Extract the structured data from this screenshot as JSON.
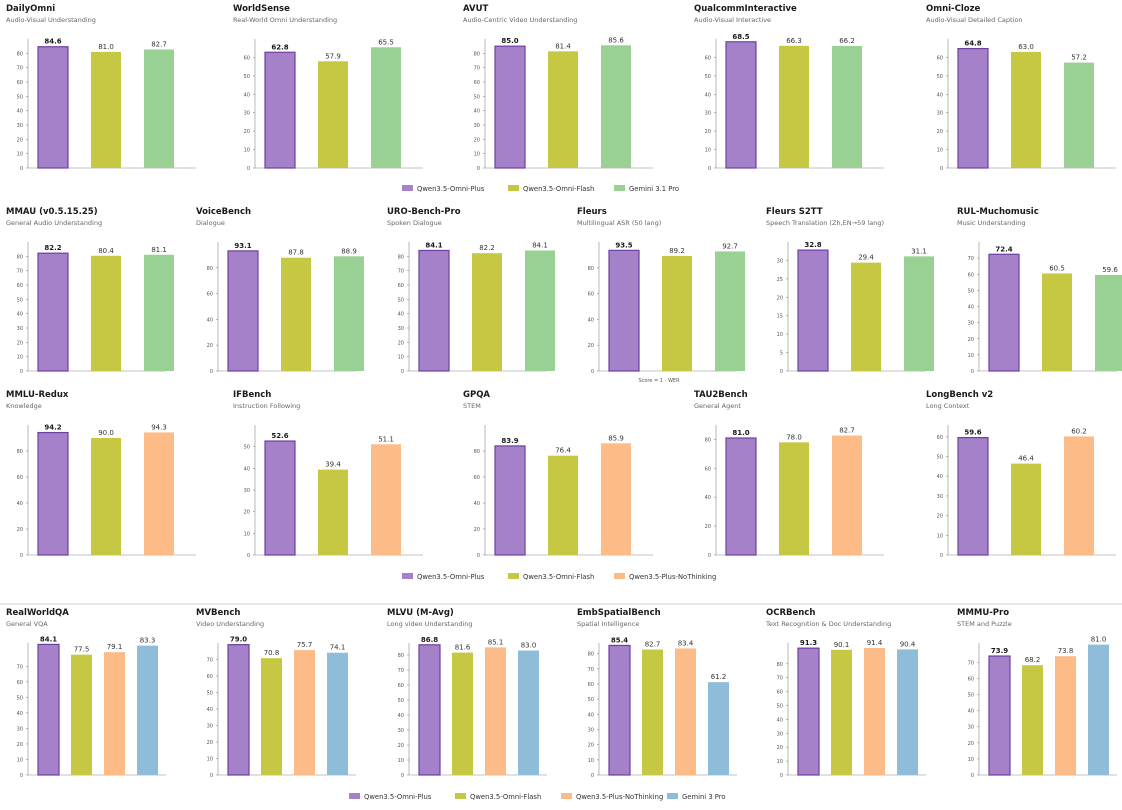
{
  "colors": {
    "Qwen3.5-Omni-Plus": "#a481c9",
    "Qwen3.5-Omni-Plus-edge": "#6e3fa0",
    "Qwen3.5-Omni-Flash": "#c6c843",
    "Gemini 3.1 Pro": "#98d193",
    "Qwen3.5-Plus-NoThinking": "#fdbb87",
    "Gemini 3 Pro": "#8fbcd9"
  },
  "legends": [
    {
      "items": [
        "Qwen3.5-Omni-Plus",
        "Qwen3.5-Omni-Flash",
        "Gemini 3.1 Pro"
      ]
    },
    {
      "items": [
        "Qwen3.5-Omni-Plus",
        "Qwen3.5-Omni-Flash",
        "Qwen3.5-Plus-NoThinking"
      ]
    },
    {
      "items": [
        "Qwen3.5-Omni-Plus",
        "Qwen3.5-Omni-Flash",
        "Qwen3.5-Plus-NoThinking",
        "Gemini 3 Pro"
      ]
    }
  ],
  "chart_data": [
    {
      "type": "bar",
      "title": "DailyOmni",
      "subtitle": "Audio-Visual Understanding",
      "series_names": [
        "Qwen3.5-Omni-Plus",
        "Qwen3.5-Omni-Flash",
        "Gemini 3.1 Pro"
      ],
      "values": [
        84.6,
        81.0,
        82.7
      ],
      "labels": [
        "84.6",
        "81.0",
        "82.7"
      ],
      "yticks": [
        0,
        10,
        20,
        30,
        40,
        50,
        60,
        70,
        80
      ],
      "ylim": [
        0,
        90
      ]
    },
    {
      "type": "bar",
      "title": "WorldSense",
      "subtitle": "Real-World Omni Understanding",
      "series_names": [
        "Qwen3.5-Omni-Plus",
        "Qwen3.5-Omni-Flash",
        "Gemini 3.1 Pro"
      ],
      "values": [
        62.8,
        57.9,
        65.5
      ],
      "labels": [
        "62.8",
        "57.9",
        "65.5"
      ],
      "yticks": [
        0,
        10,
        20,
        30,
        40,
        50,
        60
      ],
      "ylim": [
        0,
        70
      ]
    },
    {
      "type": "bar",
      "title": "AVUT",
      "subtitle": "Audio-Centric Video Understanding",
      "series_names": [
        "Qwen3.5-Omni-Plus",
        "Qwen3.5-Omni-Flash",
        "Gemini 3.1 Pro"
      ],
      "values": [
        85.0,
        81.4,
        85.6
      ],
      "labels": [
        "85.0",
        "81.4",
        "85.6"
      ],
      "yticks": [
        0,
        10,
        20,
        30,
        40,
        50,
        60,
        70,
        80
      ],
      "ylim": [
        0,
        90
      ]
    },
    {
      "type": "bar",
      "title": "QualcommInteractive",
      "subtitle": "Audio-Visual Interactive",
      "series_names": [
        "Qwen3.5-Omni-Plus",
        "Qwen3.5-Omni-Flash",
        "Gemini 3.1 Pro"
      ],
      "values": [
        68.5,
        66.3,
        66.2
      ],
      "labels": [
        "68.5",
        "66.3",
        "66.2"
      ],
      "yticks": [
        0,
        10,
        20,
        30,
        40,
        50,
        60
      ],
      "ylim": [
        0,
        70
      ]
    },
    {
      "type": "bar",
      "title": "Omni-Cloze",
      "subtitle": "Audio-Visual Detailed Caption",
      "series_names": [
        "Qwen3.5-Omni-Plus",
        "Qwen3.5-Omni-Flash",
        "Gemini 3.1 Pro"
      ],
      "values": [
        64.8,
        63.0,
        57.2
      ],
      "labels": [
        "64.8",
        "63.0",
        "57.2"
      ],
      "yticks": [
        0,
        10,
        20,
        30,
        40,
        50,
        60
      ],
      "ylim": [
        0,
        70
      ]
    },
    {
      "type": "bar",
      "title": "MMAU (v0.5.15.25)",
      "subtitle": "General Audio Understanding",
      "series_names": [
        "Qwen3.5-Omni-Plus",
        "Qwen3.5-Omni-Flash",
        "Gemini 3.1 Pro"
      ],
      "values": [
        82.2,
        80.4,
        81.1
      ],
      "labels": [
        "82.2",
        "80.4",
        "81.1"
      ],
      "yticks": [
        0,
        10,
        20,
        30,
        40,
        50,
        60,
        70,
        80
      ],
      "ylim": [
        0,
        90
      ]
    },
    {
      "type": "bar",
      "title": "VoiceBench",
      "subtitle": "Dialogue",
      "series_names": [
        "Qwen3.5-Omni-Plus",
        "Qwen3.5-Omni-Flash",
        "Gemini 3.1 Pro"
      ],
      "values": [
        93.1,
        87.8,
        88.9
      ],
      "labels": [
        "93.1",
        "87.8",
        "88.9"
      ],
      "yticks": [
        0,
        20,
        40,
        60,
        80
      ],
      "ylim": [
        0,
        100
      ]
    },
    {
      "type": "bar",
      "title": "URO-Bench-Pro",
      "subtitle": "Spoken Dialogue",
      "series_names": [
        "Qwen3.5-Omni-Plus",
        "Qwen3.5-Omni-Flash",
        "Gemini 3.1 Pro"
      ],
      "values": [
        84.1,
        82.2,
        84.1
      ],
      "labels": [
        "84.1",
        "82.2",
        "84.1"
      ],
      "yticks": [
        0,
        10,
        20,
        30,
        40,
        50,
        60,
        70,
        80
      ],
      "ylim": [
        0,
        90
      ]
    },
    {
      "type": "bar",
      "title": "Fleurs",
      "subtitle": "Multilingual ASR (50 lang)",
      "series_names": [
        "Qwen3.5-Omni-Plus",
        "Qwen3.5-Omni-Flash",
        "Gemini 3.1 Pro"
      ],
      "values": [
        93.5,
        89.2,
        92.7
      ],
      "labels": [
        "93.5",
        "89.2",
        "92.7"
      ],
      "yticks": [
        0,
        20,
        40,
        60,
        80
      ],
      "ylim": [
        0,
        100
      ],
      "note": "Score = 1 - WER"
    },
    {
      "type": "bar",
      "title": "Fleurs S2TT",
      "subtitle": "Speech Translation (Zh,EN→59 lang)",
      "series_names": [
        "Qwen3.5-Omni-Plus",
        "Qwen3.5-Omni-Flash",
        "Gemini 3.1 Pro"
      ],
      "values": [
        32.8,
        29.4,
        31.1
      ],
      "labels": [
        "32.8",
        "29.4",
        "31.1"
      ],
      "yticks": [
        0,
        5,
        10,
        15,
        20,
        25,
        30
      ],
      "ylim": [
        0,
        35
      ]
    },
    {
      "type": "bar",
      "title": "RUL-Muchomusic",
      "subtitle": "Music Understanding",
      "series_names": [
        "Qwen3.5-Omni-Plus",
        "Qwen3.5-Omni-Flash",
        "Gemini 3.1 Pro"
      ],
      "values": [
        72.4,
        60.5,
        59.6
      ],
      "labels": [
        "72.4",
        "60.5",
        "59.6"
      ],
      "yticks": [
        0,
        10,
        20,
        30,
        40,
        50,
        60,
        70
      ],
      "ylim": [
        0,
        80
      ]
    },
    {
      "type": "bar",
      "title": "MMLU-Redux",
      "subtitle": "Knowledge",
      "series_names": [
        "Qwen3.5-Omni-Plus",
        "Qwen3.5-Omni-Flash",
        "Qwen3.5-Plus-NoThinking"
      ],
      "values": [
        94.2,
        90.0,
        94.3
      ],
      "labels": [
        "94.2",
        "90.0",
        "94.3"
      ],
      "yticks": [
        0,
        20,
        40,
        60,
        80
      ],
      "ylim": [
        0,
        100
      ]
    },
    {
      "type": "bar",
      "title": "IFBench",
      "subtitle": "Instruction Following",
      "series_names": [
        "Qwen3.5-Omni-Plus",
        "Qwen3.5-Omni-Flash",
        "Qwen3.5-Plus-NoThinking"
      ],
      "values": [
        52.6,
        39.4,
        51.1
      ],
      "labels": [
        "52.6",
        "39.4",
        "51.1"
      ],
      "yticks": [
        0,
        10,
        20,
        30,
        40,
        50
      ],
      "ylim": [
        0,
        60
      ]
    },
    {
      "type": "bar",
      "title": "GPQA",
      "subtitle": "STEM",
      "series_names": [
        "Qwen3.5-Omni-Plus",
        "Qwen3.5-Omni-Flash",
        "Qwen3.5-Plus-NoThinking"
      ],
      "values": [
        83.9,
        76.4,
        85.9
      ],
      "labels": [
        "83.9",
        "76.4",
        "85.9"
      ],
      "yticks": [
        0,
        20,
        40,
        60,
        80
      ],
      "ylim": [
        0,
        100
      ]
    },
    {
      "type": "bar",
      "title": "TAU2Bench",
      "subtitle": "General Agent",
      "series_names": [
        "Qwen3.5-Omni-Plus",
        "Qwen3.5-Omni-Flash",
        "Qwen3.5-Plus-NoThinking"
      ],
      "values": [
        81.0,
        78.0,
        82.7
      ],
      "labels": [
        "81.0",
        "78.0",
        "82.7"
      ],
      "yticks": [
        0,
        20,
        40,
        60,
        80
      ],
      "ylim": [
        0,
        90
      ]
    },
    {
      "type": "bar",
      "title": "LongBench v2",
      "subtitle": "Long Context",
      "series_names": [
        "Qwen3.5-Omni-Plus",
        "Qwen3.5-Omni-Flash",
        "Qwen3.5-Plus-NoThinking"
      ],
      "values": [
        59.6,
        46.4,
        60.2
      ],
      "labels": [
        "59.6",
        "46.4",
        "60.2"
      ],
      "yticks": [
        0,
        10,
        20,
        30,
        40,
        50,
        60
      ],
      "ylim": [
        0,
        66
      ]
    },
    {
      "type": "bar",
      "title": "RealWorldQA",
      "subtitle": "General VQA",
      "series_names": [
        "Qwen3.5-Omni-Plus",
        "Qwen3.5-Omni-Flash",
        "Qwen3.5-Plus-NoThinking",
        "Gemini 3 Pro"
      ],
      "values": [
        84.1,
        77.5,
        79.1,
        83.3
      ],
      "labels": [
        "84.1",
        "77.5",
        "79.1",
        "83.3"
      ],
      "yticks": [
        0,
        10,
        20,
        30,
        40,
        50,
        60,
        70
      ],
      "ylim": [
        0,
        85
      ]
    },
    {
      "type": "bar",
      "title": "MVBench",
      "subtitle": "Video Understanding",
      "series_names": [
        "Qwen3.5-Omni-Plus",
        "Qwen3.5-Omni-Flash",
        "Qwen3.5-Plus-NoThinking",
        "Gemini 3 Pro"
      ],
      "values": [
        79.0,
        70.8,
        75.7,
        74.1
      ],
      "labels": [
        "79.0",
        "70.8",
        "75.7",
        "74.1"
      ],
      "yticks": [
        0,
        10,
        20,
        30,
        40,
        50,
        60,
        70
      ],
      "ylim": [
        0,
        80
      ]
    },
    {
      "type": "bar",
      "title": "MLVU (M-Avg)",
      "subtitle": "Long video Understanding",
      "series_names": [
        "Qwen3.5-Omni-Plus",
        "Qwen3.5-Omni-Flash",
        "Qwen3.5-Plus-NoThinking",
        "Gemini 3 Pro"
      ],
      "values": [
        86.8,
        81.6,
        85.1,
        83.0
      ],
      "labels": [
        "86.8",
        "81.6",
        "85.1",
        "83.0"
      ],
      "yticks": [
        0,
        10,
        20,
        30,
        40,
        50,
        60,
        70,
        80
      ],
      "ylim": [
        0,
        88
      ]
    },
    {
      "type": "bar",
      "title": "EmbSpatialBench",
      "subtitle": "Spatial Intelligence",
      "series_names": [
        "Qwen3.5-Omni-Plus",
        "Qwen3.5-Omni-Flash",
        "Qwen3.5-Plus-NoThinking",
        "Gemini 3 Pro"
      ],
      "values": [
        85.4,
        82.7,
        83.4,
        61.2
      ],
      "labels": [
        "85.4",
        "82.7",
        "83.4",
        "61.2"
      ],
      "yticks": [
        0,
        10,
        20,
        30,
        40,
        50,
        60,
        70,
        80
      ],
      "ylim": [
        0,
        87
      ]
    },
    {
      "type": "bar",
      "title": "OCRBench",
      "subtitle": "Text Recognition & Doc Understanding",
      "series_names": [
        "Qwen3.5-Omni-Plus",
        "Qwen3.5-Omni-Flash",
        "Qwen3.5-Plus-NoThinking",
        "Gemini 3 Pro"
      ],
      "values": [
        91.3,
        90.1,
        91.4,
        90.4
      ],
      "labels": [
        "91.3",
        "90.1",
        "91.4",
        "90.4"
      ],
      "yticks": [
        0,
        10,
        20,
        30,
        40,
        50,
        60,
        70,
        80
      ],
      "ylim": [
        0,
        95
      ]
    },
    {
      "type": "bar",
      "title": "MMMU-Pro",
      "subtitle": "STEM and Puzzle",
      "series_names": [
        "Qwen3.5-Omni-Plus",
        "Qwen3.5-Omni-Flash",
        "Qwen3.5-Plus-NoThinking",
        "Gemini 3 Pro"
      ],
      "values": [
        73.9,
        68.2,
        73.8,
        81.0
      ],
      "labels": [
        "73.9",
        "68.2",
        "73.8",
        "81.0"
      ],
      "yticks": [
        0,
        10,
        20,
        30,
        40,
        50,
        60,
        70
      ],
      "ylim": [
        0,
        82
      ]
    }
  ]
}
